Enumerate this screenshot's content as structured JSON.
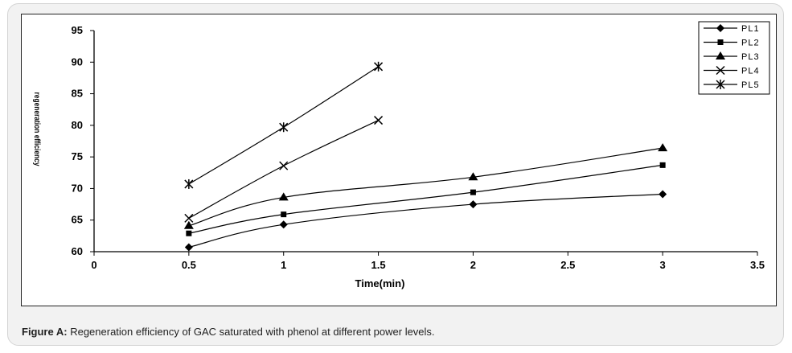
{
  "caption": {
    "label": "Figure A:",
    "text": "Regeneration efficiency of GAC saturated with phenol at different power levels."
  },
  "chart_data": {
    "type": "line",
    "xlabel": "Time(min)",
    "ylabel": "regeneration efficiency",
    "xlim": [
      0,
      3.5
    ],
    "ylim": [
      60,
      95
    ],
    "xticks": [
      0,
      0.5,
      1,
      1.5,
      2,
      2.5,
      3,
      3.5
    ],
    "yticks": [
      60,
      65,
      70,
      75,
      80,
      85,
      90,
      95
    ],
    "grid": false,
    "legend_position": "top-right",
    "series": [
      {
        "name": "PL1",
        "marker": "diamond",
        "points": [
          [
            0.5,
            60.7
          ],
          [
            1,
            64.3
          ],
          [
            2,
            67.5
          ],
          [
            3,
            69.1
          ]
        ]
      },
      {
        "name": "PL2",
        "marker": "square",
        "points": [
          [
            0.5,
            62.9
          ],
          [
            1,
            65.9
          ],
          [
            2,
            69.4
          ],
          [
            3,
            73.7
          ]
        ]
      },
      {
        "name": "PL3",
        "marker": "triangle",
        "points": [
          [
            0.5,
            64.1
          ],
          [
            1,
            68.6
          ],
          [
            2,
            71.8
          ],
          [
            3,
            76.4
          ]
        ]
      },
      {
        "name": "PL4",
        "marker": "x",
        "points": [
          [
            0.5,
            65.3
          ],
          [
            1,
            73.6
          ],
          [
            1.5,
            80.8
          ]
        ]
      },
      {
        "name": "PL5",
        "marker": "asterisk",
        "points": [
          [
            0.5,
            70.7
          ],
          [
            1,
            79.7
          ],
          [
            1.5,
            89.3
          ]
        ]
      }
    ]
  }
}
